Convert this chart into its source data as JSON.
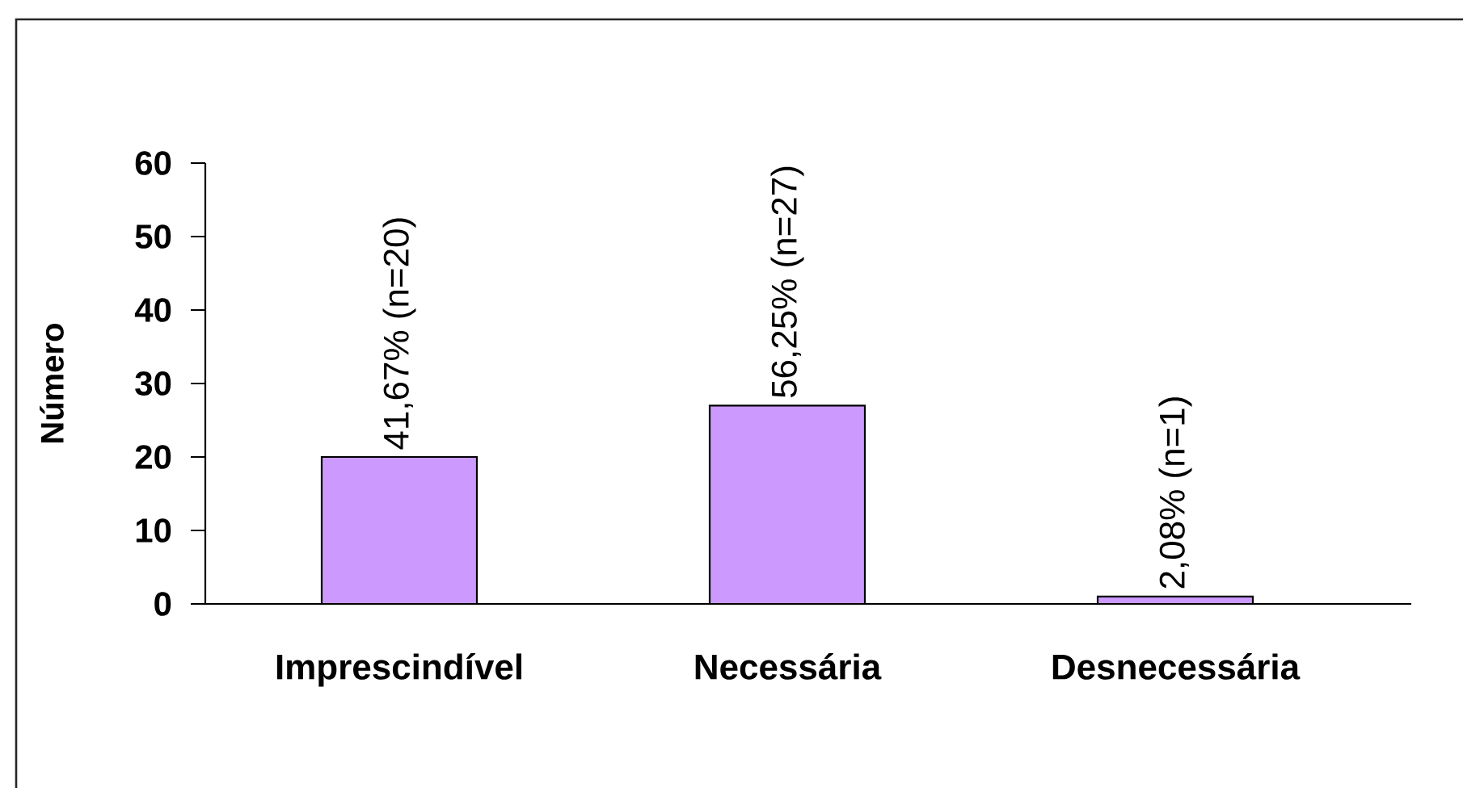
{
  "chart_data": {
    "type": "bar",
    "ylabel": "Número",
    "categories": [
      "Imprescindível",
      "Necessária",
      "Desnecessária"
    ],
    "values": [
      20,
      27,
      1
    ],
    "color": "#cc99ff",
    "value_labels": [
      "41,67% (n=20)",
      "56,25% (n=27)",
      "2,08% (n=1)"
    ],
    "ylim": [
      0,
      60
    ],
    "yticks": [
      0,
      10,
      20,
      30,
      40,
      50,
      60
    ]
  }
}
